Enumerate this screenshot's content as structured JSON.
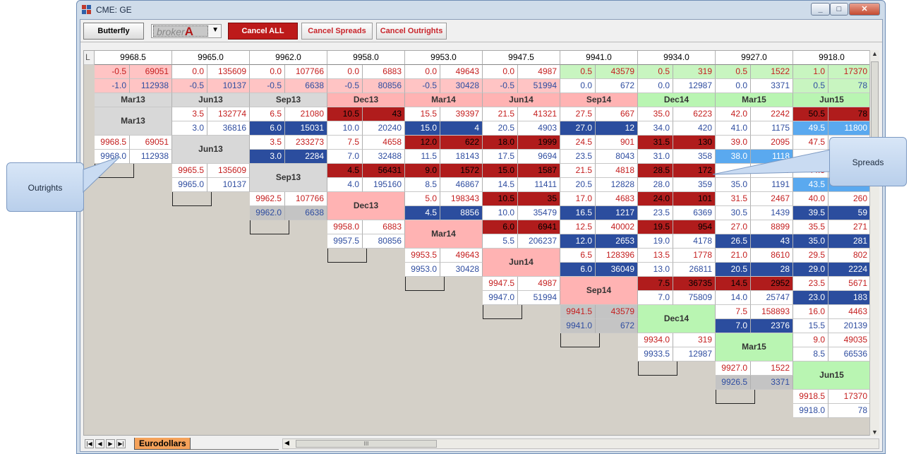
{
  "window": {
    "title": "CME: GE",
    "min": "_",
    "max": "□",
    "close": "✕"
  },
  "toolbar": {
    "butterfly": "Butterfly",
    "broker": "broker",
    "broker_mark": "A",
    "cancel_all": "Cancel ALL",
    "cancel_spreads": "Cancel Spreads",
    "cancel_outrights": "Cancel Outrights"
  },
  "grid": {
    "corner": "L",
    "prices": [
      "9968.5",
      "9965.0",
      "9962.0",
      "9958.0",
      "9953.0",
      "9947.5",
      "9941.0",
      "9934.0",
      "9927.0",
      "9918.0"
    ],
    "months": [
      "Mar13",
      "Jun13",
      "Sep13",
      "Dec13",
      "Mar14",
      "Jun14",
      "Sep14",
      "Dec14",
      "Mar15",
      "Jun15"
    ],
    "top_rows": [
      [
        [
          "-0.5",
          "69051"
        ],
        [
          "0.0",
          "135609"
        ],
        [
          "0.0",
          "107766"
        ],
        [
          "0.0",
          "6883"
        ],
        [
          "0.0",
          "49643"
        ],
        [
          "0.0",
          "4987"
        ],
        [
          "0.5",
          "43579"
        ],
        [
          "0.5",
          "319"
        ],
        [
          "0.5",
          "1522"
        ],
        [
          "1.0",
          "17370"
        ]
      ],
      [
        [
          "-1.0",
          "112938"
        ],
        [
          "-0.5",
          "10137"
        ],
        [
          "-0.5",
          "6638"
        ],
        [
          "-0.5",
          "80856"
        ],
        [
          "-0.5",
          "30428"
        ],
        [
          "-0.5",
          "51994"
        ],
        [
          "0.0",
          "672"
        ],
        [
          "0.0",
          "12987"
        ],
        [
          "0.0",
          "3371"
        ],
        [
          "0.5",
          "78"
        ]
      ]
    ],
    "cells": [
      [
        [],
        [
          "3.5",
          "132774",
          "3.0",
          "36816"
        ],
        [
          "6.5",
          "21080",
          "6.0",
          "15031"
        ],
        [
          "10.5",
          "43",
          "10.0",
          "20240"
        ],
        [
          "15.5",
          "39397",
          "15.0",
          "4"
        ],
        [
          "21.5",
          "41321",
          "20.5",
          "4903"
        ],
        [
          "27.5",
          "667",
          "27.0",
          "12"
        ],
        [
          "35.0",
          "6223",
          "34.0",
          "420"
        ],
        [
          "42.0",
          "2242",
          "41.0",
          "1175"
        ],
        [
          "50.5",
          "78",
          "49.5",
          "11800"
        ]
      ],
      [
        [
          "9968.5",
          "69051",
          "9968.0",
          "112938"
        ],
        [],
        [
          "3.5",
          "233273",
          "3.0",
          "2284"
        ],
        [
          "7.5",
          "4658",
          "7.0",
          "32488"
        ],
        [
          "12.0",
          "622",
          "11.5",
          "18143"
        ],
        [
          "18.0",
          "1999",
          "17.5",
          "9694"
        ],
        [
          "24.5",
          "901",
          "23.5",
          "8043"
        ],
        [
          "31.5",
          "130",
          "31.0",
          "358"
        ],
        [
          "39.0",
          "2095",
          "38.0",
          "1118"
        ],
        [
          "47.5",
          "",
          "",
          ""
        ]
      ],
      [
        [
          "",
          ""
        ],
        [
          "9965.5",
          "135609",
          "9965.0",
          "10137"
        ],
        [],
        [
          "4.5",
          "56431",
          "4.0",
          "195160"
        ],
        [
          "9.0",
          "1572",
          "8.5",
          "46867"
        ],
        [
          "15.0",
          "1587",
          "14.5",
          "11411"
        ],
        [
          "21.5",
          "4818",
          "20.5",
          "12828"
        ],
        [
          "28.5",
          "172",
          "28.0",
          "359"
        ],
        [
          "",
          "40",
          "35.0",
          "1191"
        ],
        [
          "44.5",
          "",
          "43.5",
          ""
        ]
      ],
      [
        [],
        [
          "",
          ""
        ],
        [
          "9962.5",
          "107766",
          "9962.0",
          "6638"
        ],
        [],
        [
          "5.0",
          "198343",
          "4.5",
          "8856"
        ],
        [
          "10.5",
          "35",
          "10.0",
          "35479"
        ],
        [
          "17.0",
          "4683",
          "16.5",
          "1217"
        ],
        [
          "24.0",
          "101",
          "23.5",
          "6369"
        ],
        [
          "31.5",
          "2467",
          "30.5",
          "1439"
        ],
        [
          "40.0",
          "260",
          "39.5",
          "59"
        ]
      ],
      [
        [],
        [],
        [
          "",
          ""
        ],
        [
          "9958.0",
          "6883",
          "9957.5",
          "80856"
        ],
        [],
        [
          "6.0",
          "6941",
          "5.5",
          "206237"
        ],
        [
          "12.5",
          "40002",
          "12.0",
          "2653"
        ],
        [
          "19.5",
          "954",
          "19.0",
          "4178"
        ],
        [
          "27.0",
          "8899",
          "26.5",
          "43"
        ],
        [
          "35.5",
          "271",
          "35.0",
          "281"
        ]
      ],
      [
        [],
        [],
        [],
        [
          "",
          ""
        ],
        [
          "9953.5",
          "49643",
          "9953.0",
          "30428"
        ],
        [],
        [
          "6.5",
          "128396",
          "6.0",
          "36049"
        ],
        [
          "13.5",
          "1778",
          "13.0",
          "26811"
        ],
        [
          "21.0",
          "8610",
          "20.5",
          "28"
        ],
        [
          "29.5",
          "802",
          "29.0",
          "2224"
        ]
      ],
      [
        [],
        [],
        [],
        [],
        [
          "",
          ""
        ],
        [
          "9947.5",
          "4987",
          "9947.0",
          "51994"
        ],
        [],
        [
          "7.5",
          "36735",
          "7.0",
          "75809"
        ],
        [
          "14.5",
          "2952",
          "14.0",
          "25747"
        ],
        [
          "23.5",
          "5671",
          "23.0",
          "183"
        ]
      ],
      [
        [],
        [],
        [],
        [],
        [],
        [
          "",
          ""
        ],
        [
          "9941.5",
          "43579",
          "9941.0",
          "672"
        ],
        [],
        [
          "7.5",
          "158893",
          "7.0",
          "2376"
        ],
        [
          "16.0",
          "4463",
          "15.5",
          "20139"
        ]
      ],
      [
        [],
        [],
        [],
        [],
        [],
        [],
        [
          "",
          ""
        ],
        [
          "9934.0",
          "319",
          "9933.5",
          "12987"
        ],
        [],
        [
          "9.0",
          "49035",
          "8.5",
          "66536"
        ]
      ],
      [
        [],
        [],
        [],
        [],
        [],
        [],
        [],
        [
          "",
          ""
        ],
        [
          "9927.0",
          "1522",
          "9926.5",
          "3371"
        ],
        []
      ],
      [
        [],
        [],
        [],
        [],
        [],
        [],
        [],
        [],
        [
          "",
          ""
        ],
        [
          "9918.5",
          "17370",
          "9918.0",
          "78"
        ]
      ]
    ]
  },
  "tabs": {
    "active": "Eurodollars",
    "scroll_mark": "III"
  },
  "callouts": {
    "outrights": "Outrights",
    "spreads": "Spreads"
  }
}
